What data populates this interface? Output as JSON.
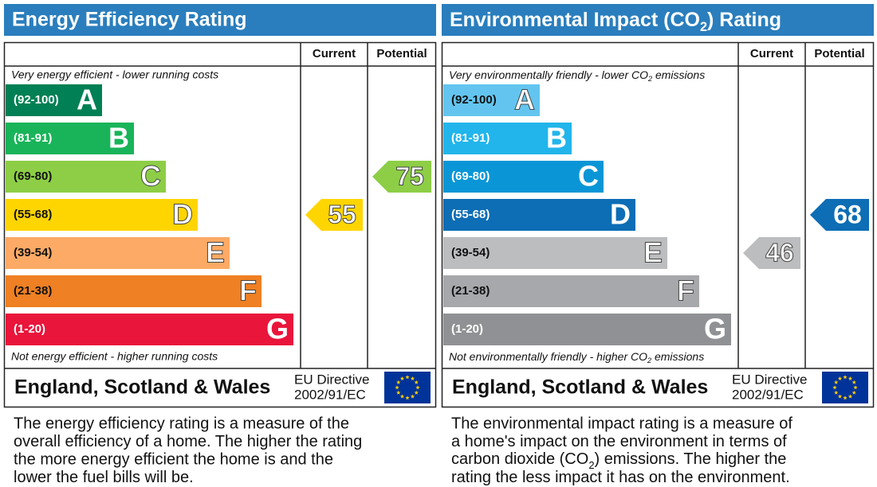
{
  "panels": [
    {
      "title": "Energy Efficiency Rating",
      "columns": [
        "Current",
        "Potential"
      ],
      "top_note": "Very energy efficient - lower running costs",
      "bottom_note": "Not energy efficient - higher running costs",
      "bands": [
        {
          "range": "(92-100)",
          "letter": "A",
          "color": "#008054"
        },
        {
          "range": "(81-91)",
          "letter": "B",
          "color": "#19b459"
        },
        {
          "range": "(69-80)",
          "letter": "C",
          "color": "#8dce46"
        },
        {
          "range": "(55-68)",
          "letter": "D",
          "color": "#ffd500"
        },
        {
          "range": "(39-54)",
          "letter": "E",
          "color": "#fcaa65"
        },
        {
          "range": "(21-38)",
          "letter": "F",
          "color": "#ef8023"
        },
        {
          "range": "(1-20)",
          "letter": "G",
          "color": "#e9153b"
        }
      ],
      "current": 55,
      "potential": 75,
      "footer": "England, Scotland & Wales",
      "directive": [
        "EU Directive",
        "2002/91/EC"
      ],
      "description": [
        "The energy efficiency rating is a measure of the",
        "overall efficiency of a home. The higher the rating",
        "the more energy efficient the home is and the",
        "lower the fuel bills will be."
      ]
    },
    {
      "title": [
        "Environmental Impact (CO",
        "2",
        ") Rating"
      ],
      "columns": [
        "Current",
        "Potential"
      ],
      "top_note": [
        "Very environmentally friendly - lower CO",
        "2",
        " emissions"
      ],
      "bottom_note": [
        "Not environmentally friendly - higher CO",
        "2",
        " emissions"
      ],
      "bands": [
        {
          "range": "(92-100)",
          "letter": "A",
          "color": "#63c5ef"
        },
        {
          "range": "(81-91)",
          "letter": "B",
          "color": "#22b5eb"
        },
        {
          "range": "(69-80)",
          "letter": "C",
          "color": "#0a96d6"
        },
        {
          "range": "(55-68)",
          "letter": "D",
          "color": "#0d6db5"
        },
        {
          "range": "(39-54)",
          "letter": "E",
          "color": "#bbbdbf"
        },
        {
          "range": "(21-38)",
          "letter": "F",
          "color": "#a6a8ab"
        },
        {
          "range": "(1-20)",
          "letter": "G",
          "color": "#8f9194"
        }
      ],
      "current": 46,
      "potential": 68,
      "footer": "England, Scotland & Wales",
      "directive": [
        "EU Directive",
        "2002/91/EC"
      ],
      "description": [
        "The environmental impact rating is a measure of",
        "a home's impact on the environment in terms of",
        [
          "carbon dioxide (CO",
          "2",
          ") emissions. The higher the"
        ],
        "rating the less impact it has on the environment."
      ]
    }
  ]
}
